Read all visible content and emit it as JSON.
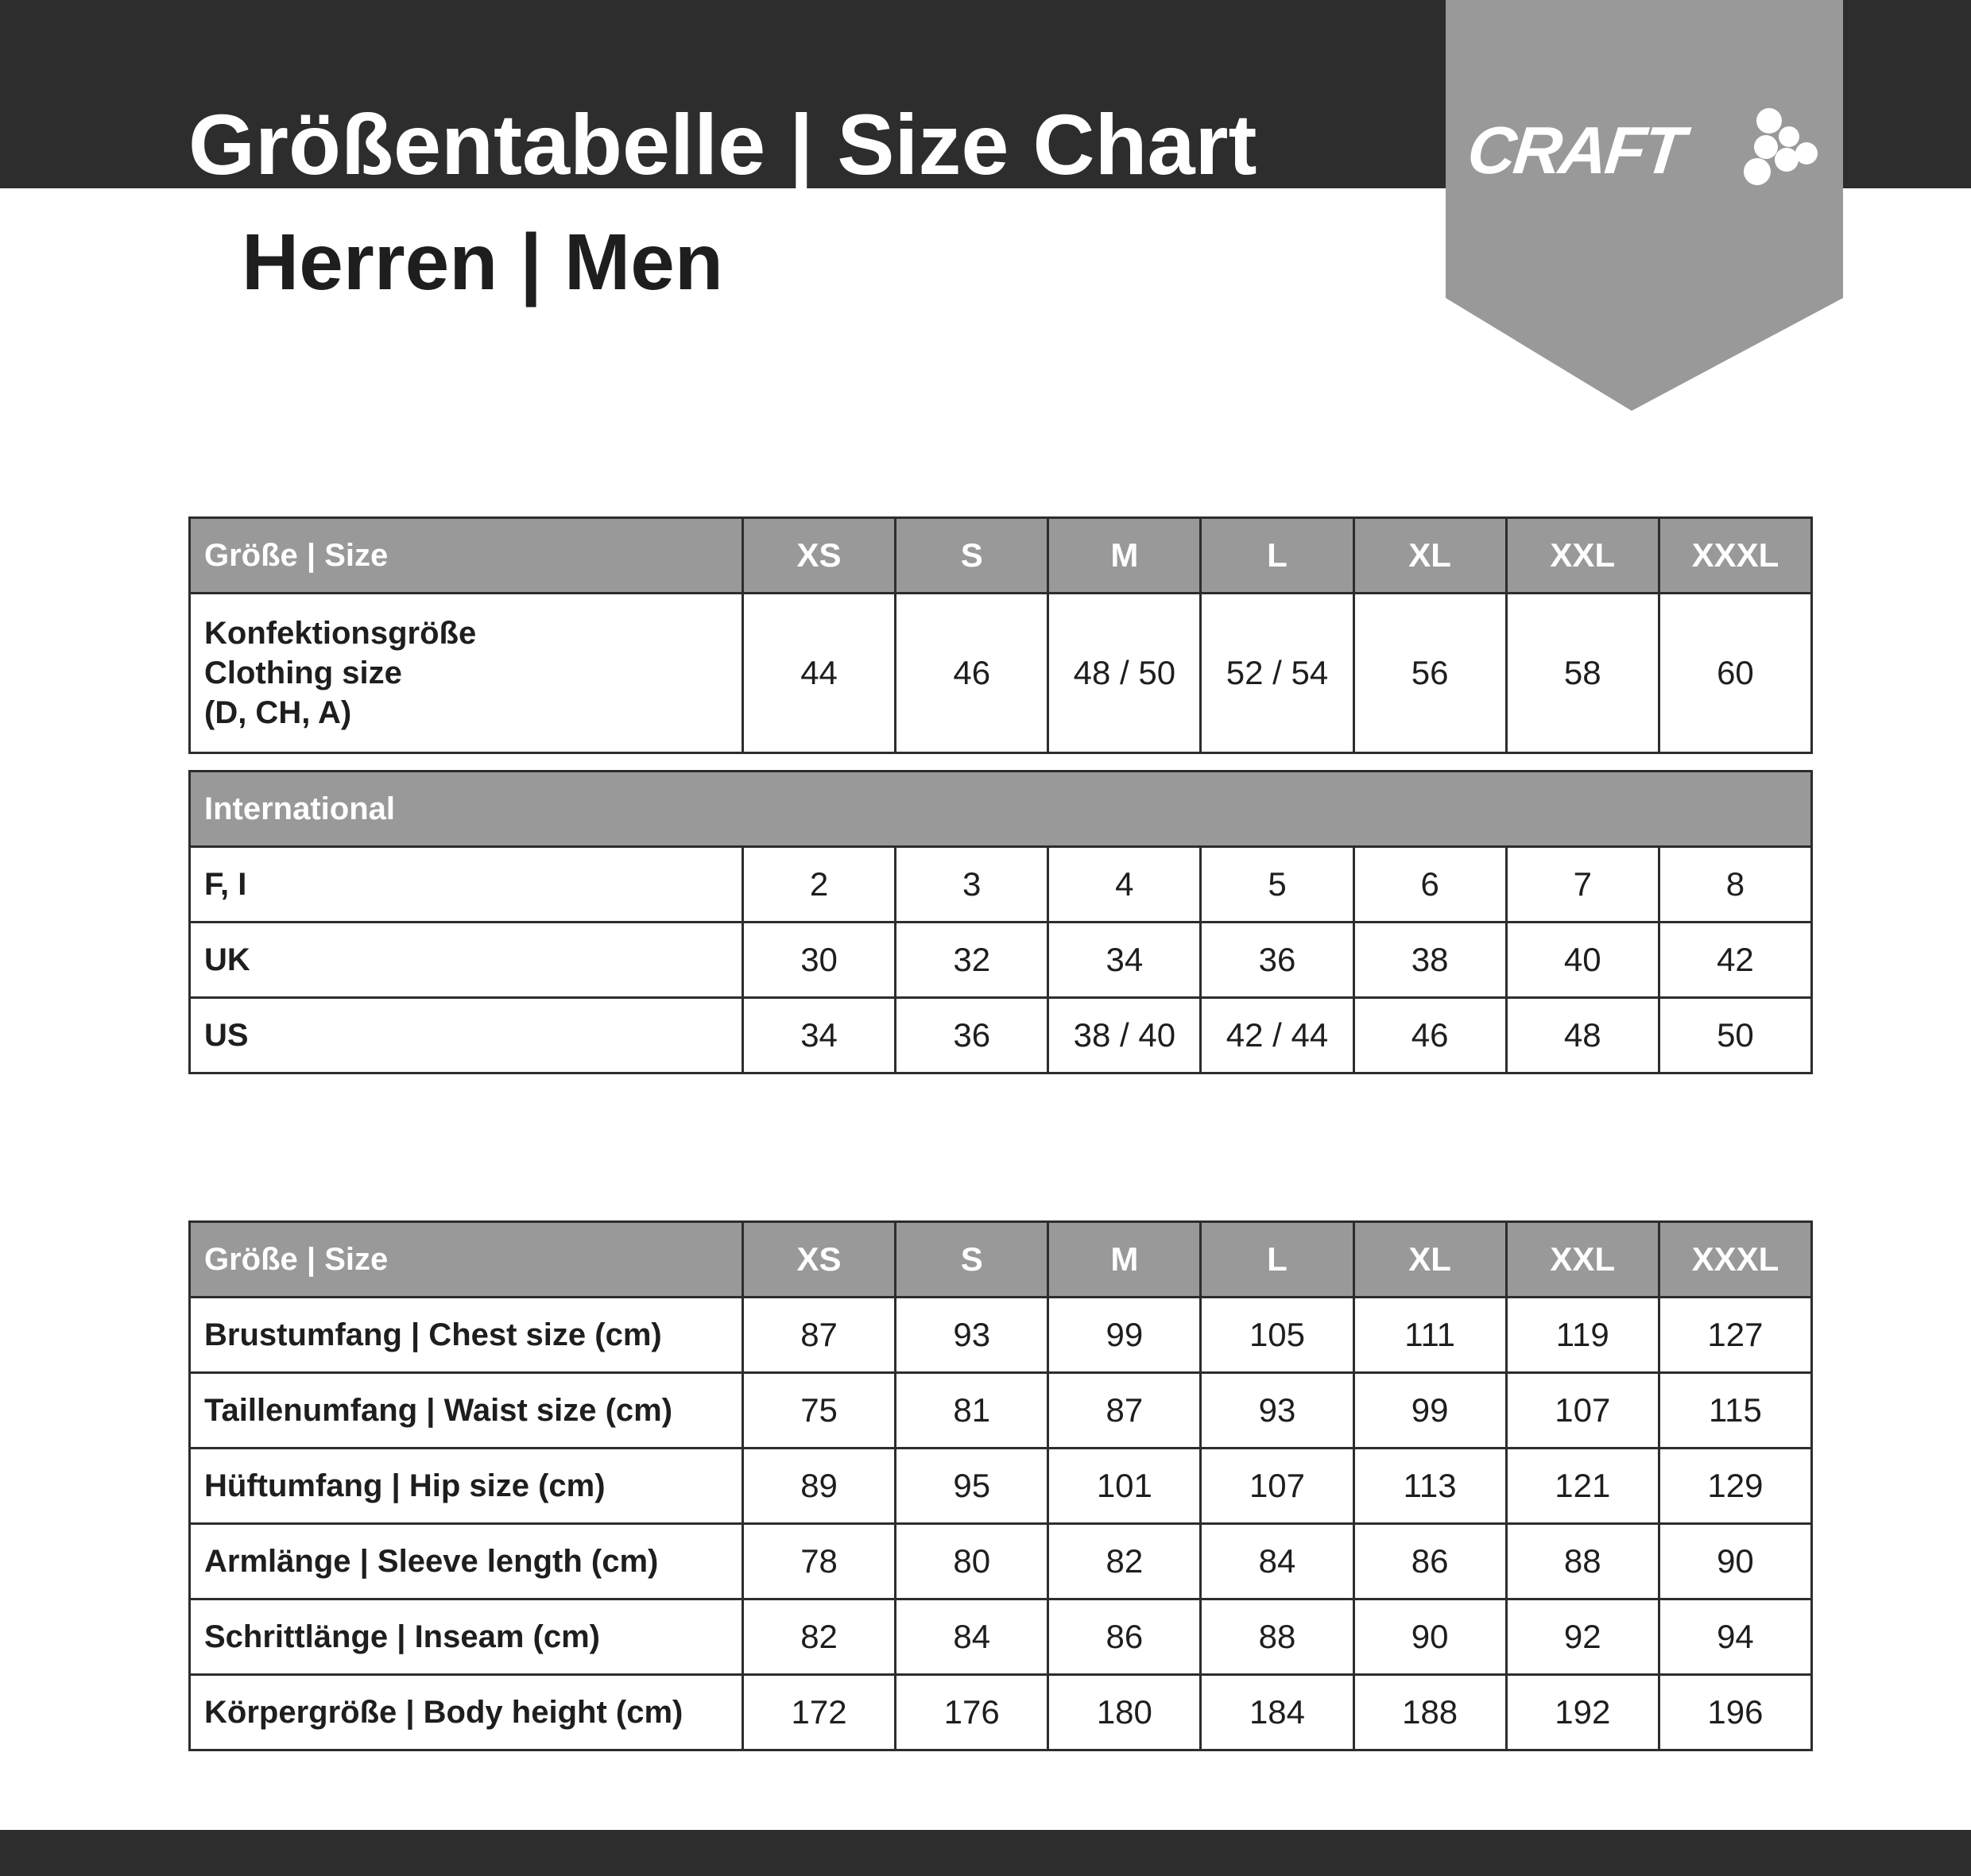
{
  "header": {
    "title": "Größentabelle | Size Chart",
    "subtitle": "Herren | Men",
    "logo_text": "CRAFT",
    "colors": {
      "dark": "#2d2d2d",
      "gray": "#999999"
    }
  },
  "table1": {
    "header": {
      "label": "Größe | Size",
      "sizes": [
        "XS",
        "S",
        "M",
        "L",
        "XL",
        "XXL",
        "XXXL"
      ]
    },
    "rows": [
      {
        "label_lines": [
          "Konfektionsgröße",
          "Clothing size",
          "(D, CH, A)"
        ],
        "values": [
          "44",
          "46",
          "48 / 50",
          "52 / 54",
          "56",
          "58",
          "60"
        ]
      }
    ]
  },
  "table2": {
    "header": "International",
    "rows": [
      {
        "label": "F, I",
        "values": [
          "2",
          "3",
          "4",
          "5",
          "6",
          "7",
          "8"
        ]
      },
      {
        "label": "UK",
        "values": [
          "30",
          "32",
          "34",
          "36",
          "38",
          "40",
          "42"
        ]
      },
      {
        "label": "US",
        "values": [
          "34",
          "36",
          "38 / 40",
          "42 / 44",
          "46",
          "48",
          "50"
        ]
      }
    ]
  },
  "table3": {
    "header": {
      "label": "Größe | Size",
      "sizes": [
        "XS",
        "S",
        "M",
        "L",
        "XL",
        "XXL",
        "XXXL"
      ]
    },
    "rows": [
      {
        "label": "Brustumfang | Chest size (cm)",
        "values": [
          "87",
          "93",
          "99",
          "105",
          "111",
          "119",
          "127"
        ]
      },
      {
        "label": "Taillenumfang | Waist size (cm)",
        "values": [
          "75",
          "81",
          "87",
          "93",
          "99",
          "107",
          "115"
        ]
      },
      {
        "label": "Hüftumfang | Hip size (cm)",
        "values": [
          "89",
          "95",
          "101",
          "107",
          "113",
          "121",
          "129"
        ]
      },
      {
        "label": "Armlänge | Sleeve length (cm)",
        "values": [
          "78",
          "80",
          "82",
          "84",
          "86",
          "88",
          "90"
        ]
      },
      {
        "label": "Schrittlänge | Inseam (cm)",
        "values": [
          "82",
          "84",
          "86",
          "88",
          "90",
          "92",
          "94"
        ]
      },
      {
        "label": "Körpergröße | Body height (cm)",
        "values": [
          "172",
          "176",
          "180",
          "184",
          "188",
          "192",
          "196"
        ]
      }
    ]
  }
}
